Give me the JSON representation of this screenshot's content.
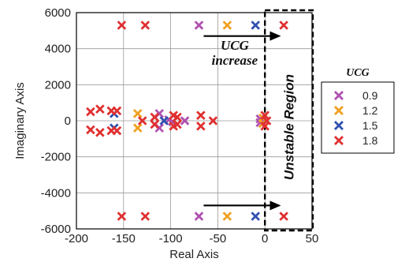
{
  "chart_data": {
    "type": "scatter",
    "xlabel": "Real Axis",
    "ylabel": "Imaginary Axis",
    "xlim": [
      -200,
      50
    ],
    "ylim": [
      -6000,
      6000
    ],
    "xticks": [
      -200,
      -150,
      -100,
      -50,
      0,
      50
    ],
    "yticks": [
      -6000,
      -4000,
      -2000,
      0,
      2000,
      4000,
      6000
    ],
    "grid": true,
    "marker": "x",
    "legend": {
      "title": "UCG",
      "placement": "right"
    },
    "annotations": {
      "arrow_label_line1": "UCG",
      "arrow_label_line2": "increase",
      "region_label": "Unstable Region"
    },
    "series": [
      {
        "name": "0.9",
        "color": "#b050b0",
        "points": [
          [
            -112,
            400
          ],
          [
            -112,
            -400
          ],
          [
            -102,
            50
          ],
          [
            -98,
            -50
          ],
          [
            -85,
            0
          ],
          [
            -70,
            5300
          ],
          [
            -70,
            -5300
          ],
          [
            -5,
            100
          ],
          [
            -5,
            -100
          ]
        ]
      },
      {
        "name": "1.2",
        "color": "#f0a020",
        "points": [
          [
            -135,
            400
          ],
          [
            -135,
            -400
          ],
          [
            -40,
            5300
          ],
          [
            -40,
            -5300
          ],
          [
            -2,
            150
          ],
          [
            -2,
            -150
          ]
        ]
      },
      {
        "name": "1.5",
        "color": "#3050b0",
        "points": [
          [
            -160,
            400
          ],
          [
            -160,
            -400
          ],
          [
            -107,
            0
          ],
          [
            -10,
            5300
          ],
          [
            -10,
            -5300
          ]
        ]
      },
      {
        "name": "1.8",
        "color": "#e03030",
        "points": [
          [
            -185,
            500
          ],
          [
            -185,
            -500
          ],
          [
            -175,
            650
          ],
          [
            -175,
            -650
          ],
          [
            -163,
            550
          ],
          [
            -163,
            -550
          ],
          [
            -157,
            550
          ],
          [
            -157,
            -550
          ],
          [
            -152,
            5300
          ],
          [
            -152,
            -5300
          ],
          [
            -127,
            5300
          ],
          [
            -127,
            -5300
          ],
          [
            -130,
            0
          ],
          [
            -117,
            200
          ],
          [
            -117,
            -200
          ],
          [
            -97,
            300
          ],
          [
            -97,
            -300
          ],
          [
            -93,
            200
          ],
          [
            -93,
            -200
          ],
          [
            -68,
            300
          ],
          [
            -68,
            -300
          ],
          [
            -55,
            0
          ],
          [
            0,
            300
          ],
          [
            0,
            -300
          ],
          [
            2,
            0
          ],
          [
            20,
            5300
          ],
          [
            20,
            -5300
          ]
        ]
      }
    ]
  }
}
